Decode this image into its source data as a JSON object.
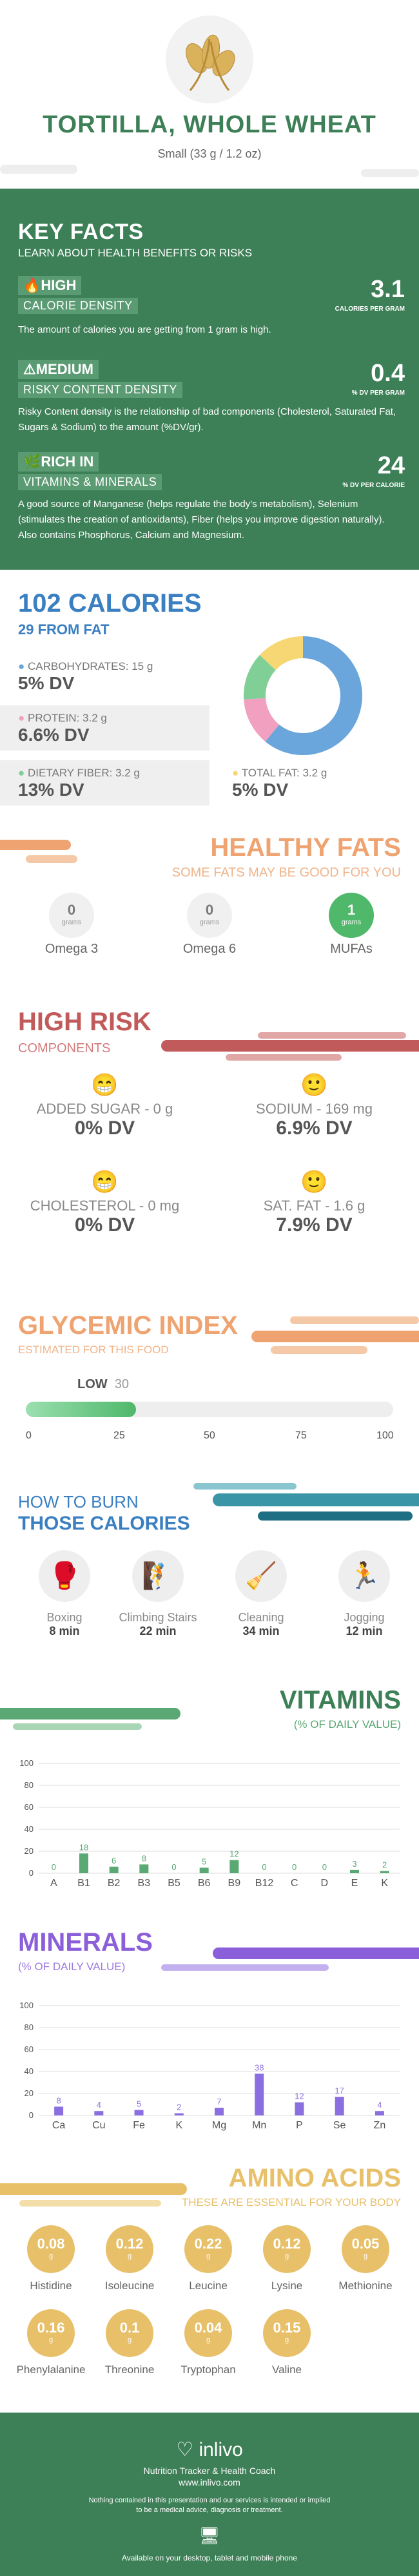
{
  "header": {
    "name": "TORTILLA, WHOLE WHEAT",
    "serving": "Small (33 g / 1.2 oz)",
    "image": "wheat-illustration"
  },
  "key_facts": {
    "title": "KEY FACTS",
    "subtitle": "LEARN ABOUT HEALTH BENEFITS OR RISKS",
    "items": [
      {
        "level": "HIGH",
        "category": "CALORIE DENSITY",
        "value": "3.1",
        "unit": "CALORIES PER GRAM",
        "icon": "flame-icon",
        "desc": "The amount of calories you are getting from 1 gram is high."
      },
      {
        "level": "MEDIUM",
        "category": "RISKY CONTENT DENSITY",
        "value": "0.4",
        "unit": "% DV PER GRAM",
        "icon": "warning-icon",
        "desc": "Risky Content density is the relationship of bad components (Cholesterol, Saturated Fat, Sugars & Sodium) to the amount (%DV/gr)."
      },
      {
        "level": "RICH IN",
        "category": "VITAMINS & MINERALS",
        "value": "24",
        "unit": "% DV PER CALORIE",
        "icon": "leaf-icon",
        "desc": "A good source of Manganese (helps regulate the body's metabolism), Selenium (stimulates the creation of antioxidants), Fiber (helps you improve digestion naturally). Also contains Phosphorus, Calcium and Magnesium."
      }
    ]
  },
  "calories": {
    "title": "102 CALORIES",
    "from_fat": "29 FROM FAT",
    "macros": [
      {
        "label": "CARBOHYDRATES: 15 g",
        "dv": "5% DV",
        "color": "#6aa6db"
      },
      {
        "label": "PROTEIN: 3.2 g",
        "dv": "6.6% DV",
        "color": "#f2a0c0"
      },
      {
        "label": "DIETARY FIBER: 3.2 g",
        "dv": "13% DV",
        "color": "#7fcf96"
      },
      {
        "label": "TOTAL FAT: 3.2 g",
        "dv": "5% DV",
        "color": "#f7d774"
      }
    ],
    "donut": [
      {
        "value": 15,
        "color": "#6aa6db"
      },
      {
        "value": 3.2,
        "color": "#f2a0c0"
      },
      {
        "value": 3.2,
        "color": "#7fcf96"
      },
      {
        "value": 3.2,
        "color": "#f7d774"
      }
    ]
  },
  "healthy_fats": {
    "title": "HEALTHY FATS",
    "subtitle": "SOME FATS MAY BE GOOD FOR YOU",
    "items": [
      {
        "value": "0",
        "unit": "grams",
        "label": "Omega 3",
        "highlight": false
      },
      {
        "value": "0",
        "unit": "grams",
        "label": "Omega 6",
        "highlight": false
      },
      {
        "value": "1",
        "unit": "grams",
        "label": "MUFAs",
        "highlight": true
      }
    ]
  },
  "high_risk": {
    "title": "HIGH RISK",
    "subtitle": "COMPONENTS",
    "items": [
      {
        "label": "ADDED SUGAR - 0 g",
        "dv": "0% DV",
        "face": "grin-face-icon"
      },
      {
        "label": "SODIUM - 169 mg",
        "dv": "6.9% DV",
        "face": "smile-face-icon"
      },
      {
        "label": "CHOLESTEROL - 0 mg",
        "dv": "0% DV",
        "face": "grin-face-icon"
      },
      {
        "label": "SAT. FAT - 1.6 g",
        "dv": "7.9% DV",
        "face": "smile-face-icon"
      }
    ]
  },
  "glycemic": {
    "title": "GLYCEMIC INDEX",
    "subtitle": "ESTIMATED FOR THIS FOOD",
    "level": "LOW",
    "value": "30",
    "fill": 0.3,
    "ticks": [
      "0",
      "25",
      "50",
      "75",
      "100"
    ]
  },
  "burn": {
    "title1": "HOW TO BURN",
    "title2": "THOSE CALORIES",
    "items": [
      {
        "label": "Boxing",
        "time": "8 min",
        "icon": "boxing-icon"
      },
      {
        "label": "Climbing Stairs",
        "time": "22 min",
        "icon": "stairs-icon"
      },
      {
        "label": "Cleaning",
        "time": "34 min",
        "icon": "cleaning-icon"
      },
      {
        "label": "Jogging",
        "time": "12 min",
        "icon": "jogging-icon"
      }
    ]
  },
  "vitamins": {
    "title": "VITAMINS",
    "subtitle": "(% OF DAILY VALUE)"
  },
  "minerals": {
    "title": "MINERALS",
    "subtitle": "(% OF DAILY VALUE)"
  },
  "chart_data": [
    {
      "type": "bar",
      "title": "VITAMINS",
      "categories": [
        "A",
        "B1",
        "B2",
        "B3",
        "B5",
        "B6",
        "B9",
        "B12",
        "C",
        "D",
        "E",
        "K"
      ],
      "values": [
        0,
        18,
        6,
        8,
        0,
        5,
        12,
        0,
        0,
        0,
        3,
        2
      ],
      "ylim": [
        0,
        100
      ],
      "yticks": [
        "0",
        "20",
        "40",
        "60",
        "80",
        "100"
      ],
      "color": "#5aa874"
    },
    {
      "type": "bar",
      "title": "MINERALS",
      "categories": [
        "Ca",
        "Cu",
        "Fe",
        "K",
        "Mg",
        "Mn",
        "P",
        "Se",
        "Zn"
      ],
      "values": [
        8,
        4,
        5,
        2,
        7,
        38,
        12,
        17,
        4
      ],
      "ylim": [
        0,
        100
      ],
      "yticks": [
        "0",
        "20",
        "40",
        "60",
        "80",
        "100"
      ],
      "color": "#8b6fe0"
    }
  ],
  "amino": {
    "title": "AMINO ACIDS",
    "subtitle": "THESE ARE ESSENTIAL FOR YOUR BODY",
    "unit": "g",
    "items": [
      {
        "value": "0.08",
        "label": "Histidine"
      },
      {
        "value": "0.12",
        "label": "Isoleucine"
      },
      {
        "value": "0.22",
        "label": "Leucine"
      },
      {
        "value": "0.12",
        "label": "Lysine"
      },
      {
        "value": "0.05",
        "label": "Methionine"
      },
      {
        "value": "0.16",
        "label": "Phenylalanine"
      },
      {
        "value": "0.1",
        "label": "Threonine"
      },
      {
        "value": "0.04",
        "label": "Tryptophan"
      },
      {
        "value": "0.15",
        "label": "Valine"
      }
    ]
  },
  "footer": {
    "brand": "inlivo",
    "tagline": "Nutrition Tracker & Health Coach",
    "url": "www.inlivo.com",
    "disclaimer1": "Nothing contained in this presentation and our services is intended or implied",
    "disclaimer2": "to be a medical advice, diagnosis or treatment.",
    "available": "Available on your desktop, tablet and mobile phone"
  },
  "colors": {
    "green": "#3d7f57",
    "blue": "#3a7fc1",
    "orange": "#eea371",
    "red": "#c15a5a",
    "purple": "#8b5fd9",
    "amber": "#e8c06a",
    "teal": "#4aa7a0"
  }
}
